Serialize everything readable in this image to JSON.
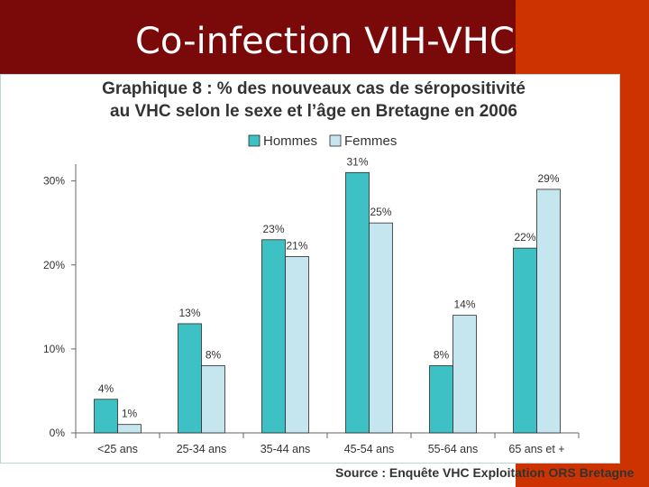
{
  "slide": {
    "title": "Co-infection VIH-VHC"
  },
  "colors": {
    "title_band": "#7a0a0a",
    "right_band": "#cc3300",
    "hommes": "#3ec1c4",
    "femmes": "#c5e6ef"
  },
  "chart_data": {
    "type": "bar",
    "title_lines": [
      "Graphique 8 : % des nouveaux cas de séropositivité",
      "au VHC selon le sexe et l’âge en Bretagne en 2006"
    ],
    "categories": [
      "<25 ans",
      "25-34 ans",
      "35-44 ans",
      "45-54 ans",
      "55-64 ans",
      "65 ans et +"
    ],
    "series": [
      {
        "name": "Hommes",
        "values": [
          4,
          13,
          23,
          31,
          8,
          22
        ],
        "labels": [
          "4%",
          "13%",
          "23%",
          "31%",
          "8%",
          "22%"
        ]
      },
      {
        "name": "Femmes",
        "values": [
          1,
          8,
          21,
          25,
          14,
          29
        ],
        "labels": [
          "1%",
          "8%",
          "21%",
          "25%",
          "14%",
          "29%"
        ]
      }
    ],
    "y_ticks": [
      0,
      10,
      20,
      30
    ],
    "y_tick_labels": [
      "0%",
      "10%",
      "20%",
      "30%"
    ],
    "ylim": [
      0,
      30
    ],
    "grid": false,
    "legend_position": "top-center",
    "source": "Source : Enquête VHC Exploitation ORS Bretagne"
  }
}
